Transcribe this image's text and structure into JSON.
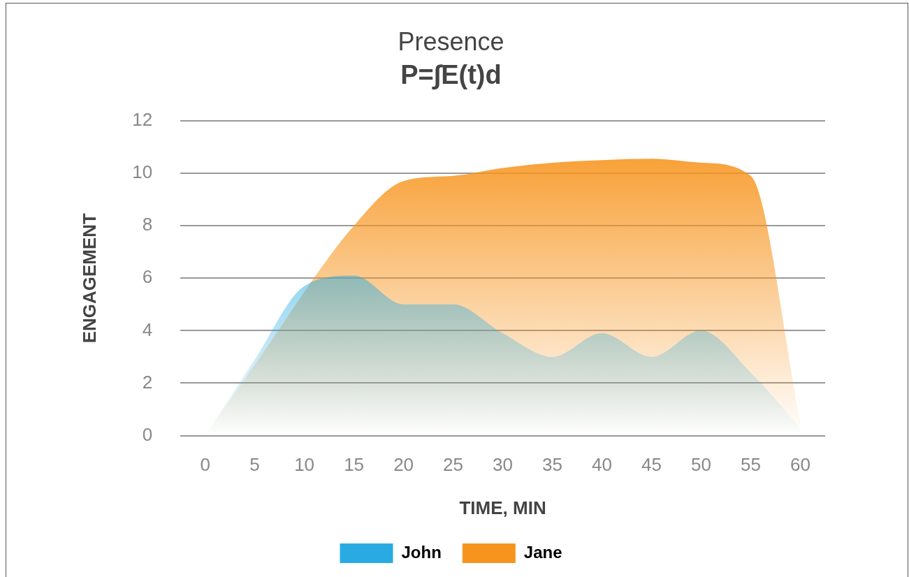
{
  "chart_data": {
    "type": "area",
    "title": "Presence",
    "subtitle": "P=∫E(t)d",
    "xlabel": "TIME, MIN",
    "ylabel": "ENGAGEMENT",
    "categories": [
      "0",
      "5",
      "10",
      "15",
      "20",
      "25",
      "30",
      "35",
      "40",
      "45",
      "50",
      "55",
      "60"
    ],
    "series": [
      {
        "name": "John",
        "color": "#29abe2",
        "values": [
          0,
          2.9,
          5.7,
          6.1,
          5.0,
          5.0,
          3.9,
          3.0,
          3.9,
          3.0,
          4.0,
          2.4,
          0.3
        ]
      },
      {
        "name": "Jane",
        "color": "#f7941d",
        "values": [
          0,
          2.7,
          null,
          8.0,
          9.7,
          9.9,
          10.2,
          10.4,
          10.5,
          10.55,
          10.4,
          9.9,
          0.5
        ]
      }
    ],
    "ylim": [
      0,
      12
    ],
    "yticks": [
      0,
      2,
      4,
      6,
      8,
      10,
      12
    ],
    "grid": "y",
    "legend": "bottom"
  }
}
